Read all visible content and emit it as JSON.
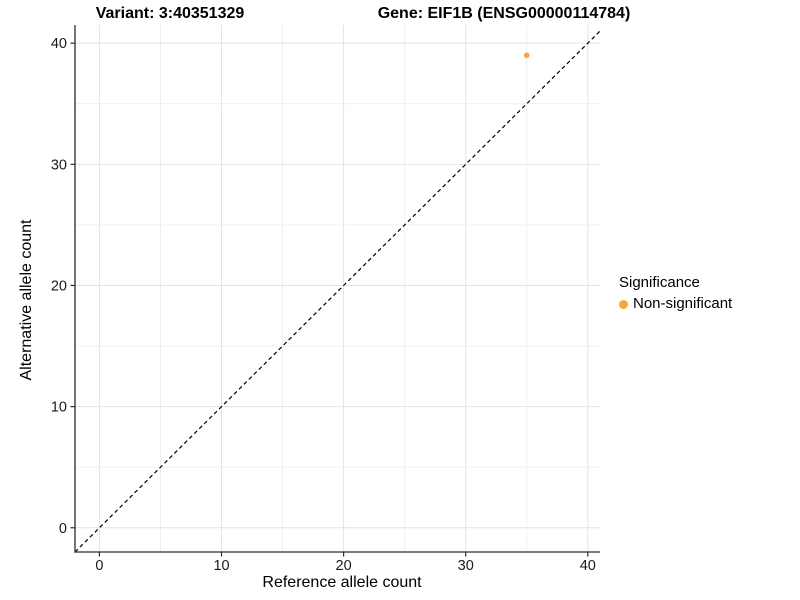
{
  "titles": {
    "left": "Variant: 3:40351329",
    "right": "Gene: EIF1B (ENSG00000114784)"
  },
  "axes": {
    "x": {
      "label": "Reference allele count",
      "major_ticks": [
        0,
        10,
        20,
        30,
        40
      ],
      "minor_ticks": [
        5,
        15,
        25,
        35
      ]
    },
    "y": {
      "label": "Alternative allele count",
      "major_ticks": [
        0,
        10,
        20,
        30,
        40
      ],
      "minor_ticks": [
        5,
        15,
        25,
        35
      ]
    }
  },
  "legend": {
    "title": "Significance",
    "items": [
      {
        "label": "Non-significant",
        "color": "#FAA43C"
      }
    ]
  },
  "chart_data": {
    "type": "scatter",
    "title": "Variant: 3:40351329  |  Gene: EIF1B (ENSG00000114784)",
    "xlabel": "Reference allele count",
    "ylabel": "Alternative allele count",
    "xlim": [
      -2,
      41
    ],
    "ylim": [
      -2,
      41.5
    ],
    "grid": true,
    "grid_interval": 5,
    "legend_position": "right",
    "series": [
      {
        "name": "Non-significant",
        "color": "#FAA43C",
        "points": [
          {
            "x": 35,
            "y": 39
          }
        ]
      }
    ],
    "reference_line": {
      "type": "identity y=x",
      "style": "dashed",
      "color": "#000000",
      "from": -2,
      "to": 41
    }
  },
  "colors": {
    "background": "#FFFFFF",
    "point": "#FAA43C",
    "axis_line": "#2B2B2B",
    "grid_major": "#E4E4E4",
    "grid_minor": "#EFEFEF",
    "tick_text": "#1A1A1A",
    "reference_line": "#000000"
  }
}
